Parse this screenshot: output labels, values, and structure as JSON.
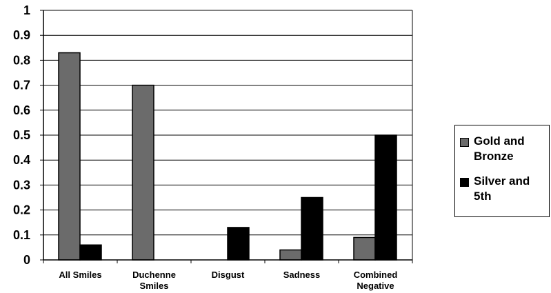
{
  "chart_data": {
    "type": "bar",
    "categories": [
      [
        "All Smiles"
      ],
      [
        "Duchenne",
        "Smiles"
      ],
      [
        "Disgust"
      ],
      [
        "Sadness"
      ],
      [
        "Combined",
        "Negative"
      ]
    ],
    "series": [
      {
        "name": "Gold and Bronze",
        "name_lines": [
          "Gold and",
          "Bronze"
        ],
        "color": "#6b6b6b",
        "values": [
          0.83,
          0.7,
          0,
          0.04,
          0.09
        ]
      },
      {
        "name": "Silver and 5th",
        "name_lines": [
          "Silver and",
          "5th"
        ],
        "color": "#000000",
        "values": [
          0.06,
          0,
          0.13,
          0.25,
          0.5
        ]
      }
    ],
    "yticks": [
      "0",
      "0.1",
      "0.2",
      "0.3",
      "0.4",
      "0.5",
      "0.6",
      "0.7",
      "0.8",
      "0.9",
      "1"
    ],
    "ylim": [
      0,
      1
    ],
    "grid": true,
    "legend": "right"
  }
}
